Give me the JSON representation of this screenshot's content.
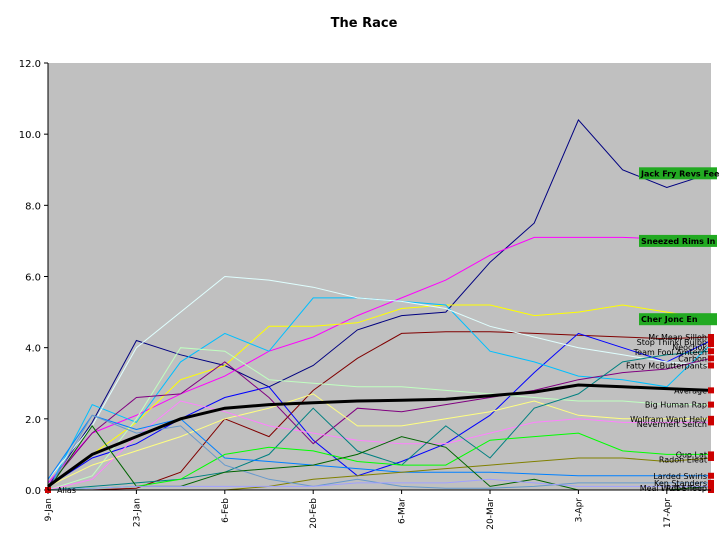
{
  "chart_data": {
    "type": "line",
    "title": "The Race",
    "xlabel": "",
    "ylabel": "",
    "ylim": [
      0,
      12
    ],
    "yticks": [
      "0.0",
      "2.0",
      "4.0",
      "6.0",
      "8.0",
      "10.0",
      "12.0"
    ],
    "xticks": [
      "9-Jan",
      "23-Jan",
      "6-Feb",
      "20-Feb",
      "6-Mar",
      "20-Mar",
      "3-Apr",
      "17-Apr"
    ],
    "x": [
      "9-Jan",
      "13-Jan",
      "23-Jan",
      "30-Jan",
      "6-Feb",
      "10-Feb",
      "20-Feb",
      "27-Feb",
      "6-Mar",
      "13-Mar",
      "20-Mar",
      "27-Mar",
      "3-Apr",
      "10-Apr",
      "17-Apr",
      "20-Apr"
    ],
    "grid": false,
    "background": "#c0c0c0",
    "series": [
      {
        "name": "Jack Fry Revs Fee",
        "color": "#000080",
        "highlight": "#22aa22",
        "values": [
          0.1,
          1.9,
          4.2,
          3.8,
          3.5,
          2.9,
          3.5,
          4.5,
          4.9,
          5.0,
          6.4,
          7.5,
          10.4,
          9.0,
          8.5,
          8.9
        ]
      },
      {
        "name": "Sneezed Rims In",
        "color": "#ff00ff",
        "highlight": "#22aa22",
        "values": [
          0.2,
          1.6,
          2.1,
          2.7,
          3.2,
          3.9,
          4.3,
          4.9,
          5.4,
          5.9,
          6.6,
          7.1,
          7.1,
          7.1,
          7.05,
          7.0
        ]
      },
      {
        "name": "Cher Jonc En",
        "color": "#ffff00",
        "highlight": "#22aa22",
        "values": [
          0.1,
          1.0,
          1.9,
          3.1,
          3.5,
          4.6,
          4.6,
          4.7,
          5.1,
          5.2,
          5.2,
          4.9,
          5.0,
          5.2,
          5.0,
          4.8
        ]
      },
      {
        "name": "Mr Mean Silloh",
        "color": "#800000",
        "values": [
          0.0,
          0.0,
          0.05,
          0.5,
          2.0,
          1.5,
          2.8,
          3.7,
          4.4,
          4.45,
          4.45,
          4.4,
          4.35,
          4.3,
          4.25,
          4.3
        ]
      },
      {
        "name": "Stop Thinkl Bulbb",
        "color": "#0000ff",
        "values": [
          0.1,
          0.9,
          1.3,
          2.0,
          2.6,
          2.9,
          1.4,
          0.4,
          0.8,
          1.3,
          2.1,
          3.3,
          4.4,
          4.0,
          3.6,
          4.2
        ]
      },
      {
        "name": "Neochok",
        "color": "#00bfff",
        "values": [
          0.0,
          2.4,
          1.9,
          3.6,
          4.4,
          3.9,
          5.4,
          5.4,
          5.3,
          5.2,
          3.9,
          3.6,
          3.2,
          3.1,
          2.9,
          4.1
        ]
      },
      {
        "name": "Fatty McButterpants",
        "color": "#e0ffff",
        "values": [
          0.3,
          1.8,
          4.0,
          5.0,
          6.0,
          5.9,
          5.7,
          5.4,
          5.3,
          5.1,
          4.6,
          4.3,
          4.0,
          3.8,
          3.6,
          3.5
        ]
      },
      {
        "name": "Big Human Rap",
        "color": "#c0ffc0",
        "values": [
          0.0,
          0.4,
          2.0,
          4.0,
          3.9,
          3.1,
          3.0,
          2.9,
          2.9,
          2.8,
          2.7,
          2.6,
          2.5,
          2.5,
          2.4,
          2.4
        ]
      },
      {
        "name": "Average",
        "color": "#000000",
        "bold": true,
        "values": [
          0.1,
          1.0,
          1.5,
          2.0,
          2.3,
          2.4,
          2.45,
          2.5,
          2.52,
          2.55,
          2.65,
          2.75,
          2.95,
          2.9,
          2.85,
          2.8
        ]
      },
      {
        "name": "Carbon",
        "color": "#800080",
        "values": [
          0.1,
          1.6,
          2.6,
          2.7,
          3.6,
          2.6,
          1.3,
          2.3,
          2.2,
          2.4,
          2.6,
          2.8,
          3.1,
          3.3,
          3.4,
          3.7
        ]
      },
      {
        "name": "Wolfram Want Hely",
        "color": "#ffff80",
        "values": [
          0.1,
          0.7,
          1.1,
          1.5,
          2.0,
          2.3,
          2.7,
          1.8,
          1.8,
          2.0,
          2.2,
          2.5,
          2.1,
          2.0,
          2.0,
          2.0
        ]
      },
      {
        "name": "Nevermert Seitch",
        "color": "#ff80ff",
        "values": [
          0.0,
          0.3,
          1.5,
          2.5,
          2.2,
          1.8,
          1.6,
          1.4,
          1.3,
          1.3,
          1.6,
          1.9,
          2.0,
          1.9,
          1.9,
          1.9
        ]
      },
      {
        "name": "Team Fool Amtech",
        "color": "#008080",
        "values": [
          0.0,
          0.1,
          0.2,
          0.3,
          0.5,
          1.0,
          2.3,
          1.1,
          0.7,
          1.8,
          0.9,
          2.3,
          2.7,
          3.6,
          3.8,
          3.9
        ]
      },
      {
        "name": "Larded Swirls",
        "color": "#0080ff",
        "values": [
          0.3,
          2.1,
          1.7,
          2.0,
          0.9,
          0.8,
          0.7,
          0.6,
          0.5,
          0.5,
          0.5,
          0.45,
          0.4,
          0.4,
          0.4,
          0.4
        ]
      },
      {
        "name": "Quo Lat",
        "color": "#00ff00",
        "values": [
          0.0,
          0.05,
          0.1,
          0.3,
          1.0,
          1.2,
          1.1,
          0.8,
          0.7,
          0.7,
          1.4,
          1.5,
          1.6,
          1.1,
          1.0,
          1.0
        ]
      },
      {
        "name": "Radon Eleat",
        "color": "#808000",
        "values": [
          0.0,
          0.0,
          0.0,
          0.0,
          0.0,
          0.1,
          0.3,
          0.4,
          0.5,
          0.6,
          0.7,
          0.8,
          0.9,
          0.9,
          0.8,
          0.9
        ]
      },
      {
        "name": "Ken Standers",
        "color": "#6699cc",
        "values": [
          0.0,
          2.1,
          1.6,
          1.8,
          0.7,
          0.3,
          0.1,
          0.3,
          0.1,
          0.05,
          0.05,
          0.1,
          0.2,
          0.2,
          0.2,
          0.2
        ]
      },
      {
        "name": "Meal Wuff Sheep",
        "color": "#006400",
        "values": [
          0.0,
          1.8,
          0.1,
          0.1,
          0.5,
          0.6,
          0.7,
          1.0,
          1.5,
          1.2,
          0.1,
          0.3,
          0.0,
          0.0,
          0.0,
          0.1
        ]
      },
      {
        "name": "I Robe Toep",
        "color": "#a0a0ff",
        "values": [
          0.0,
          0.05,
          0.1,
          0.1,
          0.1,
          0.1,
          0.1,
          0.2,
          0.2,
          0.2,
          0.3,
          0.2,
          0.1,
          0.1,
          0.1,
          0.1
        ]
      },
      {
        "name": "Alias",
        "color": "#ff0000",
        "values": [
          0.0,
          0.0,
          0.0,
          0.0,
          0.0,
          0.0,
          0.0,
          0.0,
          0.0,
          0.0,
          0.0,
          0.0,
          0.0,
          0.0,
          0.0,
          0.0
        ]
      }
    ]
  }
}
